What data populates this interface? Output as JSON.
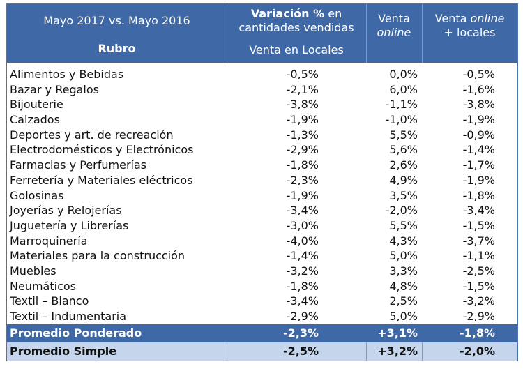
{
  "header": {
    "period": "Mayo 2017 vs. Mayo 2016",
    "rubro_label": "Rubro",
    "variation_title_bold": "Variación %",
    "variation_title_rest": " en cantidades vendidas",
    "locales_label": "Venta en Locales",
    "online_label_1": "Venta",
    "online_label_2": "online",
    "both_label_1": "Venta",
    "both_label_2": "online",
    "both_label_3": "+ locales"
  },
  "chart_data": {
    "type": "table",
    "columns": [
      "Rubro",
      "Venta en Locales",
      "Venta online",
      "Venta online + locales"
    ],
    "rows": [
      [
        "Alimentos y Bebidas",
        "-0,5%",
        "0,0%",
        "-0,5%"
      ],
      [
        "Bazar y Regalos",
        "-2,1%",
        "6,0%",
        "-1,6%"
      ],
      [
        "Bijouterie",
        "-3,8%",
        "-1,1%",
        "-3,8%"
      ],
      [
        "Calzados",
        "-1,9%",
        "-1,0%",
        "-1,9%"
      ],
      [
        "Deportes y art. de recreación",
        "-1,3%",
        "5,5%",
        "-0,9%"
      ],
      [
        "Electrodomésticos y Electrónicos",
        "-2,9%",
        "5,6%",
        "-1,4%"
      ],
      [
        "Farmacias y Perfumerías",
        "-1,8%",
        "2,6%",
        "-1,7%"
      ],
      [
        "Ferretería y Materiales eléctricos",
        "-2,3%",
        "4,9%",
        "-1,9%"
      ],
      [
        "Golosinas",
        "-1,9%",
        "3,5%",
        "-1,8%"
      ],
      [
        "Joyerías y Relojerías",
        "-3,4%",
        "-2,0%",
        "-3,4%"
      ],
      [
        "Juguetería y Librerías",
        "-3,0%",
        "5,5%",
        "-1,5%"
      ],
      [
        "Marroquinería",
        "-4,0%",
        "4,3%",
        "-3,7%"
      ],
      [
        "Materiales para la construcción",
        "-1,4%",
        "5,0%",
        "-1,1%"
      ],
      [
        "Muebles",
        "-3,2%",
        "3,3%",
        "-2,5%"
      ],
      [
        "Neumáticos",
        "-1,8%",
        "4,8%",
        "-1,5%"
      ],
      [
        "Textil – Blanco",
        "-3,4%",
        "2,5%",
        "-3,2%"
      ],
      [
        "Textil – Indumentaria",
        "-2,9%",
        "5,0%",
        "-2,9%"
      ]
    ],
    "summary": [
      [
        "Promedio Ponderado",
        "-2,3%",
        "+3,1%",
        "-1,8%"
      ],
      [
        "Promedio Simple",
        "-2,5%",
        "+3,2%",
        "-2,0%"
      ]
    ]
  },
  "colors": {
    "header_bg": "#3f68a6",
    "summary_simple_bg": "#c5d6ec"
  }
}
